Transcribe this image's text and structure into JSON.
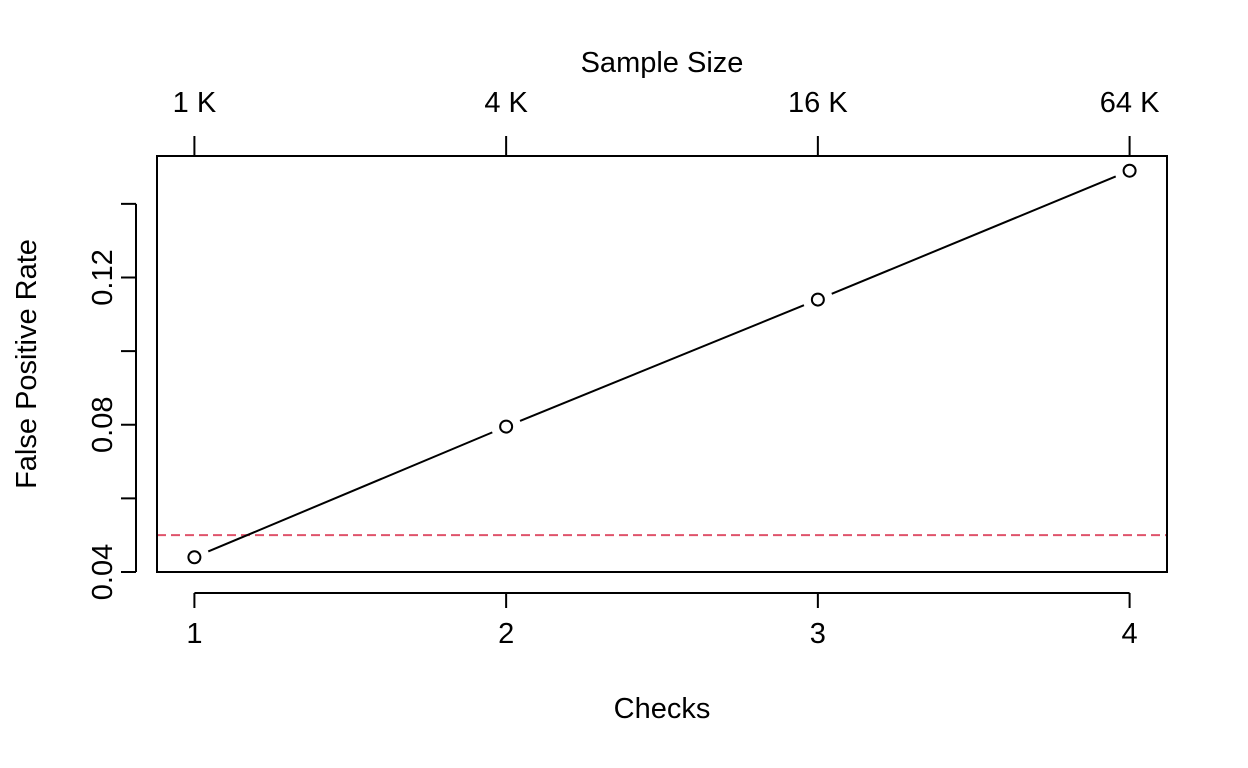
{
  "chart_data": {
    "type": "line",
    "x": [
      1,
      2,
      3,
      4
    ],
    "series": [
      {
        "values": [
          0.044,
          0.0795,
          0.114,
          0.149
        ]
      }
    ],
    "xlabel": "Checks",
    "ylabel": "False Positive Rate",
    "x_ticks": [
      1,
      2,
      3,
      4
    ],
    "x_tick_labels": [
      "1",
      "2",
      "3",
      "4"
    ],
    "y_ticks": [
      0.04,
      0.06,
      0.08,
      0.1,
      0.12,
      0.14
    ],
    "y_tick_labels": [
      "0.04",
      "",
      "0.08",
      "",
      "0.12",
      ""
    ],
    "secondary_x_axis": {
      "label": "Sample Size",
      "position": "top",
      "ticks": [
        1,
        2,
        3,
        4
      ],
      "tick_labels": [
        "1 K",
        "4 K",
        "16 K",
        "64 K"
      ]
    },
    "reference_line": {
      "orientation": "horizontal",
      "value": 0.05,
      "style": "dashed",
      "color": "#DF536B"
    },
    "xlim": [
      0.88,
      4.12
    ],
    "ylim": [
      0.04,
      0.153
    ],
    "grid": false,
    "colors": {
      "series": "#000000",
      "reference_line": "#DF536B"
    }
  }
}
